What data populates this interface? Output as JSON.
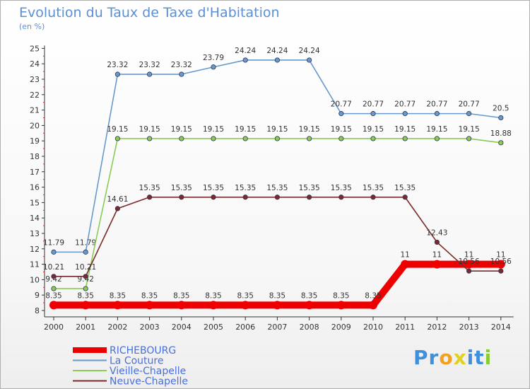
{
  "chart_data": {
    "type": "line",
    "title": "Evolution du Taux de Taxe d'Habitation",
    "unit": "(en %)",
    "categories": [
      "2000",
      "2001",
      "2002",
      "2003",
      "2004",
      "2005",
      "2006",
      "2007",
      "2008",
      "2009",
      "2010",
      "2011",
      "2012",
      "2013",
      "2014"
    ],
    "ylim": [
      8,
      25
    ],
    "yticks": [
      8,
      9,
      10,
      11,
      12,
      13,
      14,
      15,
      16,
      17,
      18,
      19,
      20,
      21,
      22,
      23,
      24,
      25
    ],
    "grid": false,
    "series": [
      {
        "name": "RICHEBOURG",
        "color": "#ee0000",
        "thick": true,
        "values": [
          8.35,
          8.35,
          8.35,
          8.35,
          8.35,
          8.35,
          8.35,
          8.35,
          8.35,
          8.35,
          8.35,
          11,
          11,
          11,
          11
        ],
        "labels": [
          "8.35",
          "8.35",
          "8.35",
          "8.35",
          "8.35",
          "8.35",
          "8.35",
          "8.35",
          "8.35",
          "8.35",
          "8.35",
          "11",
          "11",
          "11",
          "11"
        ]
      },
      {
        "name": "La Couture",
        "color": "#6699cc",
        "values": [
          11.79,
          11.79,
          23.32,
          23.32,
          23.32,
          23.79,
          24.24,
          24.24,
          24.24,
          20.77,
          20.77,
          20.77,
          20.77,
          20.77,
          20.5
        ],
        "labels": [
          "11.79",
          "11.79",
          "23.32",
          "23.32",
          "23.32",
          "23.79",
          "24.24",
          "24.24",
          "24.24",
          "20.77",
          "20.77",
          "20.77",
          "20.77",
          "20.77",
          "20.5"
        ]
      },
      {
        "name": "Vieille-Chapelle",
        "color": "#88cc55",
        "values": [
          9.42,
          9.42,
          19.15,
          19.15,
          19.15,
          19.15,
          19.15,
          19.15,
          19.15,
          19.15,
          19.15,
          19.15,
          19.15,
          19.15,
          18.88
        ],
        "labels": [
          "9.42",
          "9.42",
          "19.15",
          "19.15",
          "19.15",
          "19.15",
          "19.15",
          "19.15",
          "19.15",
          "19.15",
          "19.15",
          "19.15",
          "19.15",
          "19.15",
          "18.88"
        ]
      },
      {
        "name": "Neuve-Chapelle",
        "color": "#7a2a2a",
        "values": [
          10.21,
          10.21,
          14.61,
          15.35,
          15.35,
          15.35,
          15.35,
          15.35,
          15.35,
          15.35,
          15.35,
          15.35,
          12.43,
          10.56,
          10.56
        ],
        "labels": [
          "10.21",
          "10.21",
          "14.61",
          "15.35",
          "15.35",
          "15.35",
          "15.35",
          "15.35",
          "15.35",
          "15.35",
          "15.35",
          "15.35",
          "12.43",
          "10.56",
          "10.56"
        ]
      }
    ]
  },
  "brand": {
    "letters": [
      "P",
      "r",
      "o",
      "x",
      "i",
      "t",
      "i"
    ],
    "colors": [
      "#3f8fdc",
      "#3f8fdc",
      "#f2a020",
      "#e0d020",
      "#3f8fdc",
      "#3f8fdc",
      "#88cc33"
    ]
  }
}
